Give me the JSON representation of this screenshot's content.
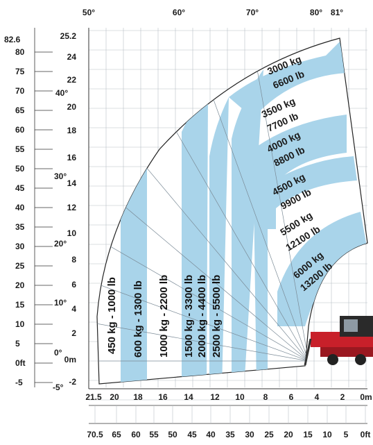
{
  "chart_data": {
    "type": "load-chart",
    "angle_labels_top": [
      "50°",
      "60°",
      "70°",
      "80°",
      "81°"
    ],
    "angle_labels_side": [
      "40°",
      "30°",
      "20°",
      "10°",
      "0°",
      "-5°"
    ],
    "height_ft_labels": [
      "82.6",
      "80",
      "75",
      "70",
      "65",
      "60",
      "55",
      "50",
      "45",
      "40",
      "35",
      "30",
      "25",
      "20",
      "15",
      "10",
      "5",
      "0ft",
      "-5"
    ],
    "height_m_labels": [
      "25.2",
      "24",
      "22",
      "20",
      "18",
      "16",
      "14",
      "12",
      "10",
      "8",
      "6",
      "4",
      "2",
      "0m",
      "-2"
    ],
    "reach_m_labels": [
      "21.5",
      "20",
      "18",
      "16",
      "14",
      "12",
      "10",
      "8",
      "6",
      "4",
      "2",
      "0m"
    ],
    "reach_ft_labels": [
      "70.5",
      "65",
      "60",
      "55",
      "50",
      "45",
      "40",
      "35",
      "30",
      "25",
      "20",
      "15",
      "10",
      "5",
      "0ft"
    ],
    "vertical_zone_labels": [
      "450 kg - 1000 lb",
      "600 kg - 1300 lb",
      "1000 kg - 2200 lb",
      "1500 kg - 3300 lb",
      "2000 kg - 4400 lb",
      "2500 kg - 5500 lb"
    ],
    "arc_zone_labels": [
      {
        "kg": "3000 kg",
        "lb": "6600 lb"
      },
      {
        "kg": "3500 kg",
        "lb": "7700 lb"
      },
      {
        "kg": "4000 kg",
        "lb": "8800 lb"
      },
      {
        "kg": "4500 kg",
        "lb": "9900 lb"
      },
      {
        "kg": "5500 kg",
        "lb": "12100 lb"
      },
      {
        "kg": "6000 kg",
        "lb": "13200 lb"
      }
    ],
    "zone_color": "#a9d4ea",
    "grid_color": "#b8bfc6",
    "machine_color": "#c8202a"
  }
}
